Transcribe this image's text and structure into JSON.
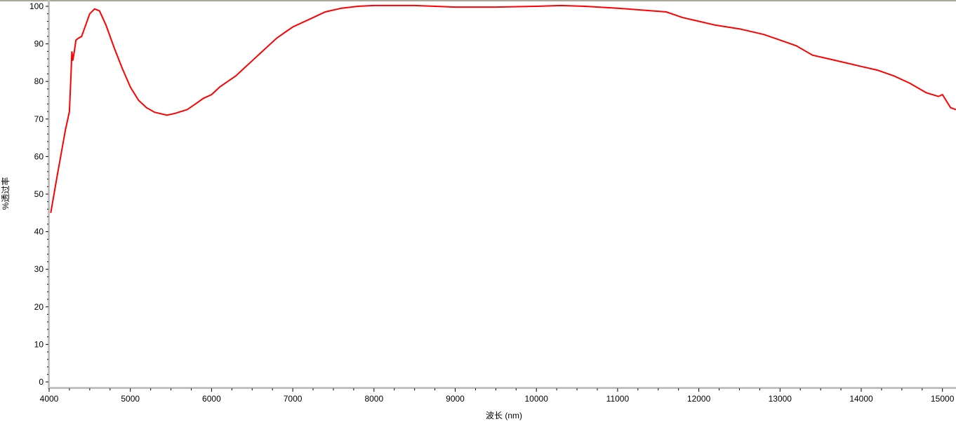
{
  "chart_data": {
    "type": "line",
    "title": "",
    "xlabel": "波长 (nm)",
    "ylabel": "%透过率",
    "xlim": [
      4000,
      15166
    ],
    "ylim": [
      -1.5,
      100.5
    ],
    "x_ticks": [
      4000,
      5000,
      6000,
      7000,
      8000,
      9000,
      10000,
      11000,
      12000,
      13000,
      14000,
      15000
    ],
    "y_ticks": [
      0,
      10,
      20,
      30,
      40,
      50,
      60,
      70,
      80,
      90,
      100
    ],
    "grid": false,
    "line_color": "#ff0000",
    "series": [
      {
        "x": [
          4020,
          4100,
          4200,
          4250,
          4270,
          4280,
          4290,
          4310,
          4330,
          4360,
          4400,
          4450,
          4500,
          4560,
          4620,
          4700,
          4800,
          4900,
          5000,
          5100,
          5200,
          5300,
          5450,
          5550,
          5700,
          5800,
          5900,
          6000,
          6100,
          6200,
          6300,
          6400,
          6500,
          6600,
          6700,
          6800,
          6900,
          7000,
          7200,
          7400,
          7600,
          7800,
          8000,
          8500,
          9000,
          9500,
          10000,
          10300,
          10600,
          11000,
          11300,
          11600,
          11800,
          12000,
          12200,
          12500,
          12800,
          13000,
          13200,
          13400,
          13600,
          13800,
          14000,
          14200,
          14400,
          14600,
          14800,
          14950,
          15000,
          15100,
          15166
        ],
        "y": [
          45,
          55,
          67,
          72,
          82,
          88,
          85.5,
          88,
          91,
          91.5,
          92,
          95,
          98,
          99.3,
          98.8,
          95,
          89,
          83.5,
          78.5,
          75,
          73,
          71.8,
          71,
          71.5,
          72.5,
          74,
          75.5,
          76.5,
          78.5,
          80,
          81.5,
          83.5,
          85.5,
          87.5,
          89.5,
          91.5,
          93,
          94.5,
          96.5,
          98.5,
          99.5,
          100,
          100.2,
          100.2,
          99.8,
          99.8,
          100,
          100.2,
          100,
          99.5,
          99,
          98.5,
          97,
          96,
          95,
          94,
          92.5,
          91,
          89.5,
          87,
          86,
          85,
          84,
          83,
          81.5,
          79.5,
          77,
          76,
          76.5,
          73,
          72.5
        ]
      }
    ]
  }
}
